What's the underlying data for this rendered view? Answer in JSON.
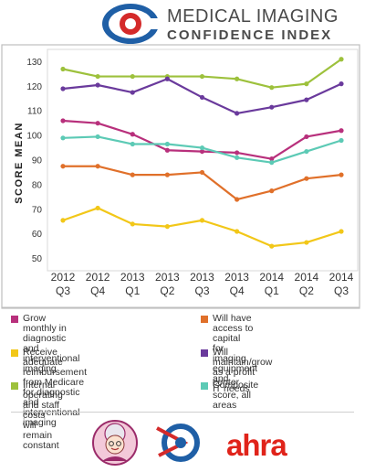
{
  "header": {
    "title_line1": "MEDICAL IMAGING",
    "title_line2": "CONFIDENCE INDEX",
    "logo_icon": "eye-c-logo"
  },
  "chart_data": {
    "type": "line",
    "ylabel": "SCORE MEAN",
    "ylim": [
      45,
      135
    ],
    "yticks": [
      50,
      60,
      70,
      80,
      90,
      100,
      110,
      120,
      130
    ],
    "categories": [
      [
        "2012",
        "Q3"
      ],
      [
        "2012",
        "Q4"
      ],
      [
        "2013",
        "Q1"
      ],
      [
        "2013",
        "Q2"
      ],
      [
        "2013",
        "Q3"
      ],
      [
        "2013",
        "Q4"
      ],
      [
        "2014",
        "Q1"
      ],
      [
        "2014",
        "Q2"
      ],
      [
        "2014",
        "Q3"
      ]
    ],
    "series": [
      {
        "name": "Internal operating and staff costs will remain constant",
        "color": "#9dc13c",
        "values": [
          127,
          124,
          124,
          124,
          124,
          123,
          119.5,
          121,
          131
        ]
      },
      {
        "name": "Will maintain/grow as a profit center",
        "color": "#6a3a9c",
        "values": [
          119,
          120.5,
          117.5,
          123,
          115.5,
          109,
          111.5,
          114.5,
          121
        ]
      },
      {
        "name": "Grow monthly in diagnostic and interventional imaging",
        "color": "#b8307c",
        "values": [
          106,
          105,
          100.5,
          94,
          93.5,
          93,
          90.5,
          99.5,
          102
        ]
      },
      {
        "name": "Composite score, all areas",
        "color": "#5ccab5",
        "values": [
          99,
          99.5,
          96.5,
          96.5,
          95,
          91,
          89,
          93.5,
          98
        ]
      },
      {
        "name": "Will have access to capital for imaging equipment and IT needs",
        "color": "#e0702a",
        "values": [
          87.5,
          87.5,
          84,
          84,
          85,
          74,
          77.5,
          82.5,
          84
        ]
      },
      {
        "name": "Receive adequate reimbursement from Medicare for diagnostic and interventional imaging",
        "color": "#f2c718",
        "values": [
          65.5,
          70.5,
          64,
          63,
          65.5,
          61,
          55,
          56.5,
          61
        ]
      }
    ]
  },
  "legend": [
    {
      "text": "Grow monthly in diagnostic\nand interventional imaging",
      "color": "#b8307c"
    },
    {
      "text": "Will have access to capital\nfor imaging equipment and\nIT needs",
      "color": "#e0702a"
    },
    {
      "text": "Receive adequate reimbursement\nfrom Medicare for diagnostic and\ninterventional imaging",
      "color": "#f2c718"
    },
    {
      "text": "Will maintain/grow as a profit\ncenter",
      "color": "#6a3a9c"
    },
    {
      "text": "Internal operating and staff costs\nwill remain constant",
      "color": "#9dc13c"
    },
    {
      "text": "Composite score, all areas",
      "color": "#5ccab5"
    }
  ],
  "footer": {
    "logo1_icon": "grandmother-mascot-logo",
    "logo2_icon": "circle-arrow-logo",
    "logo3_text": "ahra"
  }
}
